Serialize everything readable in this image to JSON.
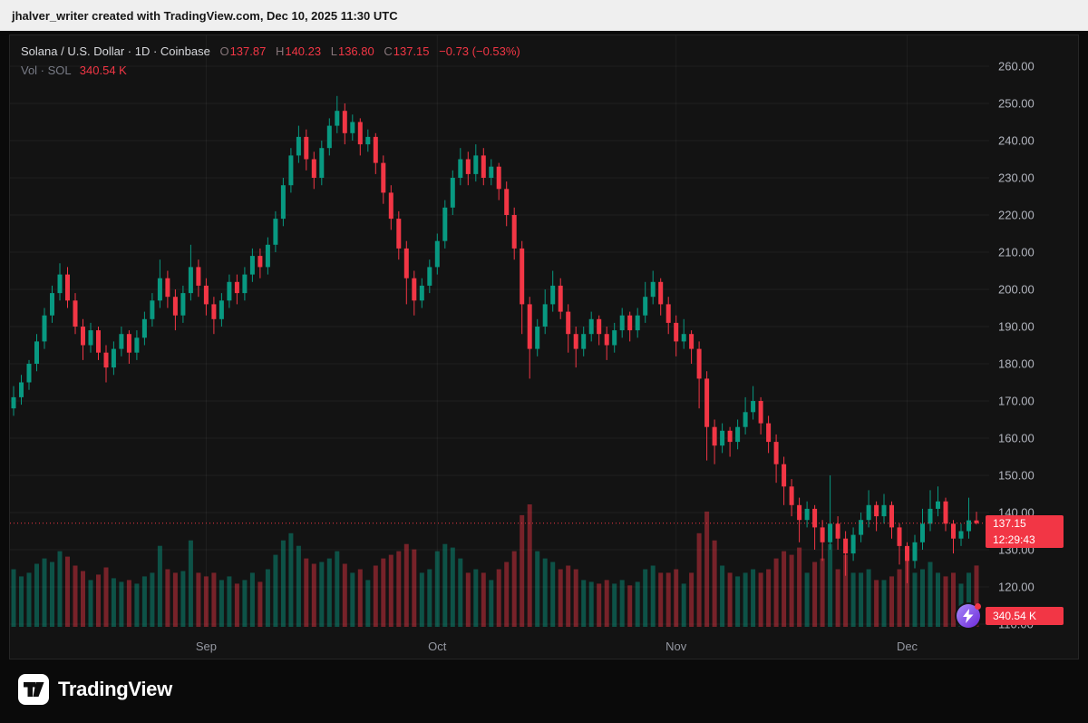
{
  "attribution_bar": {
    "text": "jhalver_writer created with TradingView.com, Dec 10, 2025 11:30 UTC"
  },
  "legend": {
    "symbol_text": "Solana / U.S. Dollar · 1D · Coinbase",
    "o_label": "O",
    "o": "137.87",
    "h_label": "H",
    "h": "140.23",
    "l_label": "L",
    "l": "136.80",
    "c_label": "C",
    "c": "137.15",
    "change": "−0.73 (−0.53%)",
    "volume_label": "Vol · SOL",
    "volume_value": "340.54 K"
  },
  "price_scale": {
    "current_price": "137.15",
    "countdown": "12:29:43",
    "volume_value": "340.54 K"
  },
  "footer": {
    "brand": "TradingView"
  },
  "colors": {
    "up": "#089981",
    "down": "#f23645",
    "volume_up": "rgba(8,153,129,0.48)",
    "volume_down": "rgba(242,54,69,0.45)",
    "axis_text": "#b2b5be",
    "month_text": "#9598a1",
    "grid": "rgba(255,255,255,0.05)",
    "badge": "#f23645",
    "boost": "#7c3aed"
  },
  "chart_data": {
    "type": "candlestick",
    "title": "Solana / U.S. Dollar",
    "interval": "1D",
    "exchange": "Coinbase",
    "last_ohlc": {
      "open": 137.87,
      "high": 140.23,
      "low": 136.8,
      "close": 137.15,
      "change": -0.73,
      "change_pct": -0.53
    },
    "last_volume": "340.54 K",
    "y_max": 260,
    "y_min": 110,
    "y_ticks": [
      "260.00",
      "250.00",
      "240.00",
      "230.00",
      "220.00",
      "210.00",
      "200.00",
      "190.00",
      "180.00",
      "170.00",
      "160.00",
      "150.00",
      "140.00",
      "130.00",
      "120.00",
      "110.00"
    ],
    "month_ticks": [
      {
        "label": "Sep",
        "index": 25
      },
      {
        "label": "Oct",
        "index": 55
      },
      {
        "label": "Nov",
        "index": 86
      },
      {
        "label": "Dec",
        "index": 116
      }
    ],
    "price_line": 137.15,
    "candles": [
      [
        168,
        174,
        166,
        171,
        320
      ],
      [
        171,
        177,
        169,
        175,
        280
      ],
      [
        175,
        181,
        173,
        180,
        300
      ],
      [
        180,
        188,
        178,
        186,
        350
      ],
      [
        186,
        195,
        184,
        193,
        380
      ],
      [
        193,
        201,
        191,
        199,
        360
      ],
      [
        199,
        207,
        197,
        204,
        420
      ],
      [
        204,
        206,
        195,
        197,
        390
      ],
      [
        197,
        199,
        188,
        190,
        340
      ],
      [
        190,
        192,
        181,
        185,
        310
      ],
      [
        185,
        191,
        183,
        189,
        260
      ],
      [
        189,
        190,
        181,
        183,
        290
      ],
      [
        183,
        185,
        175,
        179,
        330
      ],
      [
        179,
        186,
        177,
        184,
        270
      ],
      [
        184,
        190,
        182,
        188,
        250
      ],
      [
        188,
        189,
        180,
        183,
        260
      ],
      [
        183,
        189,
        181,
        187,
        240
      ],
      [
        187,
        194,
        185,
        192,
        280
      ],
      [
        192,
        199,
        190,
        197,
        300
      ],
      [
        197,
        208,
        195,
        203,
        450
      ],
      [
        203,
        205,
        195,
        198,
        320
      ],
      [
        198,
        200,
        189,
        193,
        300
      ],
      [
        193,
        201,
        191,
        199,
        310
      ],
      [
        199,
        212,
        197,
        206,
        480
      ],
      [
        206,
        208,
        198,
        201,
        300
      ],
      [
        201,
        203,
        193,
        196,
        280
      ],
      [
        196,
        198,
        188,
        192,
        300
      ],
      [
        192,
        199,
        190,
        197,
        260
      ],
      [
        197,
        204,
        195,
        202,
        280
      ],
      [
        202,
        204,
        196,
        199,
        240
      ],
      [
        199,
        206,
        197,
        204,
        260
      ],
      [
        204,
        211,
        202,
        209,
        300
      ],
      [
        209,
        211,
        203,
        206,
        250
      ],
      [
        206,
        214,
        204,
        212,
        320
      ],
      [
        212,
        221,
        210,
        219,
        400
      ],
      [
        219,
        230,
        217,
        228,
        480
      ],
      [
        228,
        238,
        226,
        236,
        520
      ],
      [
        236,
        244,
        234,
        241,
        450
      ],
      [
        241,
        243,
        232,
        235,
        380
      ],
      [
        235,
        237,
        227,
        230,
        350
      ],
      [
        230,
        240,
        228,
        238,
        360
      ],
      [
        238,
        246,
        236,
        244,
        380
      ],
      [
        244,
        252,
        242,
        248,
        420
      ],
      [
        248,
        250,
        239,
        242,
        350
      ],
      [
        242,
        247,
        240,
        245,
        300
      ],
      [
        245,
        246,
        236,
        239,
        320
      ],
      [
        239,
        243,
        237,
        241,
        260
      ],
      [
        241,
        242,
        231,
        234,
        340
      ],
      [
        234,
        236,
        223,
        226,
        380
      ],
      [
        226,
        228,
        216,
        219,
        400
      ],
      [
        219,
        221,
        208,
        211,
        420
      ],
      [
        211,
        213,
        196,
        203,
        460
      ],
      [
        203,
        205,
        193,
        197,
        430
      ],
      [
        197,
        203,
        195,
        201,
        300
      ],
      [
        201,
        208,
        199,
        206,
        320
      ],
      [
        206,
        215,
        204,
        213,
        420
      ],
      [
        213,
        224,
        211,
        222,
        460
      ],
      [
        222,
        232,
        220,
        230,
        440
      ],
      [
        230,
        238,
        228,
        235,
        380
      ],
      [
        235,
        237,
        228,
        231,
        300
      ],
      [
        231,
        239,
        229,
        236,
        320
      ],
      [
        236,
        238,
        228,
        230,
        300
      ],
      [
        230,
        235,
        228,
        233,
        260
      ],
      [
        233,
        234,
        224,
        227,
        320
      ],
      [
        227,
        229,
        217,
        220,
        360
      ],
      [
        220,
        222,
        208,
        211,
        420
      ],
      [
        211,
        213,
        188,
        196,
        620
      ],
      [
        196,
        198,
        176,
        184,
        680
      ],
      [
        184,
        192,
        182,
        190,
        420
      ],
      [
        190,
        200,
        188,
        196,
        380
      ],
      [
        196,
        205,
        194,
        201,
        360
      ],
      [
        201,
        203,
        192,
        194,
        320
      ],
      [
        194,
        196,
        183,
        188,
        340
      ],
      [
        188,
        190,
        179,
        184,
        320
      ],
      [
        184,
        190,
        182,
        188,
        260
      ],
      [
        188,
        194,
        186,
        192,
        250
      ],
      [
        192,
        193,
        185,
        188,
        240
      ],
      [
        188,
        190,
        181,
        185,
        260
      ],
      [
        185,
        191,
        183,
        189,
        240
      ],
      [
        189,
        195,
        187,
        193,
        260
      ],
      [
        193,
        194,
        186,
        189,
        230
      ],
      [
        189,
        195,
        187,
        193,
        250
      ],
      [
        193,
        202,
        191,
        198,
        320
      ],
      [
        198,
        205,
        196,
        202,
        340
      ],
      [
        202,
        203,
        193,
        196,
        300
      ],
      [
        196,
        198,
        188,
        191,
        300
      ],
      [
        191,
        193,
        182,
        186,
        320
      ],
      [
        186,
        192,
        184,
        188,
        240
      ],
      [
        188,
        189,
        180,
        184,
        300
      ],
      [
        184,
        186,
        168,
        176,
        520
      ],
      [
        176,
        178,
        154,
        163,
        640
      ],
      [
        163,
        165,
        153,
        158,
        480
      ],
      [
        158,
        164,
        156,
        162,
        340
      ],
      [
        162,
        163,
        155,
        159,
        300
      ],
      [
        159,
        165,
        157,
        163,
        280
      ],
      [
        163,
        171,
        161,
        167,
        300
      ],
      [
        167,
        174,
        165,
        170,
        320
      ],
      [
        170,
        171,
        161,
        164,
        300
      ],
      [
        164,
        166,
        156,
        159,
        320
      ],
      [
        159,
        161,
        148,
        153,
        380
      ],
      [
        153,
        155,
        142,
        147,
        420
      ],
      [
        147,
        149,
        139,
        142,
        400
      ],
      [
        142,
        144,
        132,
        138,
        440
      ],
      [
        138,
        143,
        136,
        141,
        300
      ],
      [
        141,
        142,
        130,
        136,
        360
      ],
      [
        136,
        138,
        127,
        132,
        380
      ],
      [
        132,
        150,
        130,
        137,
        460
      ],
      [
        137,
        139,
        130,
        133,
        320
      ],
      [
        133,
        135,
        123,
        129,
        400
      ],
      [
        129,
        136,
        127,
        134,
        300
      ],
      [
        134,
        140,
        132,
        138,
        300
      ],
      [
        138,
        146,
        136,
        142,
        320
      ],
      [
        142,
        143,
        135,
        139,
        260
      ],
      [
        139,
        145,
        137,
        142,
        260
      ],
      [
        142,
        143,
        133,
        136,
        280
      ],
      [
        136,
        137,
        126,
        131,
        320
      ],
      [
        131,
        132,
        121,
        127,
        380
      ],
      [
        127,
        134,
        125,
        132,
        300
      ],
      [
        132,
        141,
        130,
        137,
        320
      ],
      [
        137,
        146,
        135,
        141,
        360
      ],
      [
        141,
        147,
        139,
        143,
        300
      ],
      [
        143,
        144,
        135,
        137,
        280
      ],
      [
        137,
        138,
        129,
        133,
        300
      ],
      [
        133,
        137,
        131,
        135,
        240
      ],
      [
        135,
        144,
        133,
        137.9,
        300
      ],
      [
        137.87,
        140.23,
        136.8,
        137.15,
        340.54
      ]
    ]
  }
}
